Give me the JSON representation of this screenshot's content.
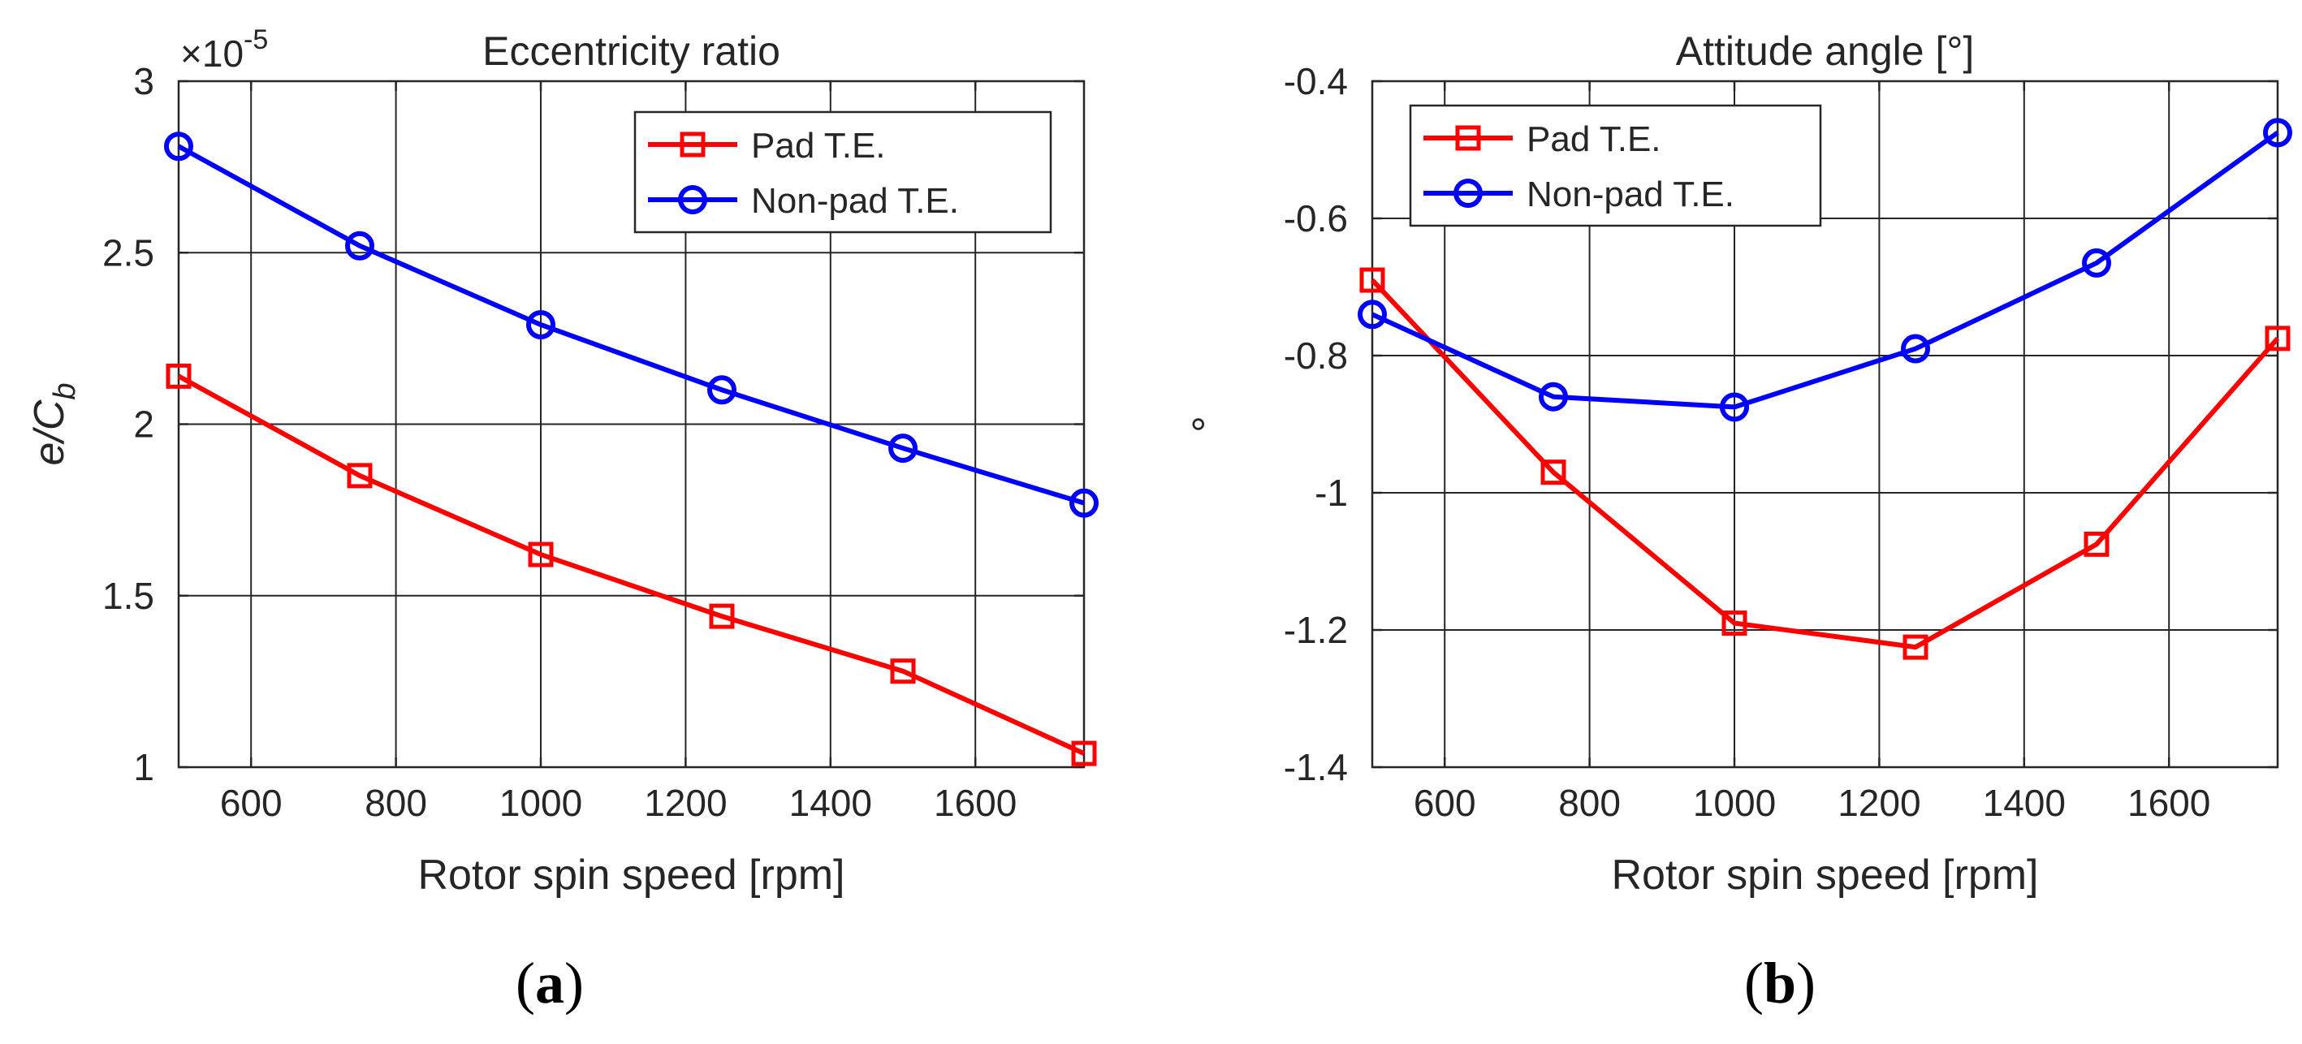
{
  "chart_data": [
    {
      "type": "line",
      "panel_label": "a",
      "title": "Eccentricity ratio",
      "xlabel": "Rotor spin speed [rpm]",
      "ylabel_main": "e/C",
      "ylabel_sub": "b",
      "exponent_base": "×10",
      "exponent_power": "-5",
      "xlim": [
        500,
        1750
      ],
      "ylim": [
        1,
        3
      ],
      "xticks": [
        600,
        800,
        1000,
        1200,
        1400,
        1600
      ],
      "xtick_labels": [
        "600",
        "800",
        "1000",
        "1200",
        "1400",
        "1600"
      ],
      "yticks": [
        1,
        1.5,
        2,
        2.5,
        3
      ],
      "ytick_labels": [
        "1",
        "1.5",
        "2",
        "2.5",
        "3"
      ],
      "grid": true,
      "legend_position": "top-right",
      "x": [
        500,
        750,
        1000,
        1250,
        1500,
        1750
      ],
      "series": [
        {
          "name": "Pad T.E.",
          "color": "#ff0000",
          "marker": "square",
          "values": [
            2.14,
            1.85,
            1.62,
            1.44,
            1.28,
            1.04
          ]
        },
        {
          "name": "Non-pad T.E.",
          "color": "#0000ff",
          "marker": "circle",
          "values": [
            2.81,
            2.52,
            2.29,
            2.1,
            1.93,
            1.77
          ]
        }
      ]
    },
    {
      "type": "line",
      "panel_label": "b",
      "title": "Attitude angle [°]",
      "xlabel": "Rotor spin speed [rpm]",
      "ylabel_main": "°",
      "xlim": [
        500,
        1750
      ],
      "ylim": [
        -1.4,
        -0.4
      ],
      "xticks": [
        600,
        800,
        1000,
        1200,
        1400,
        1600
      ],
      "xtick_labels": [
        "600",
        "800",
        "1000",
        "1200",
        "1400",
        "1600"
      ],
      "yticks": [
        -1.4,
        -1.2,
        -1,
        -0.8,
        -0.6,
        -0.4
      ],
      "ytick_labels": [
        "-1.4",
        "-1.2",
        "-1",
        "-0.8",
        "-0.6",
        "-0.4"
      ],
      "grid": true,
      "legend_position": "top-left",
      "x": [
        500,
        750,
        1000,
        1250,
        1500,
        1750
      ],
      "series": [
        {
          "name": "Pad T.E.",
          "color": "#ff0000",
          "marker": "square",
          "values": [
            -0.69,
            -0.97,
            -1.19,
            -1.225,
            -1.075,
            -0.775
          ]
        },
        {
          "name": "Non-pad T.E.",
          "color": "#0000ff",
          "marker": "circle",
          "values": [
            -0.74,
            -0.86,
            -0.875,
            -0.79,
            -0.665,
            -0.475
          ]
        }
      ]
    }
  ]
}
